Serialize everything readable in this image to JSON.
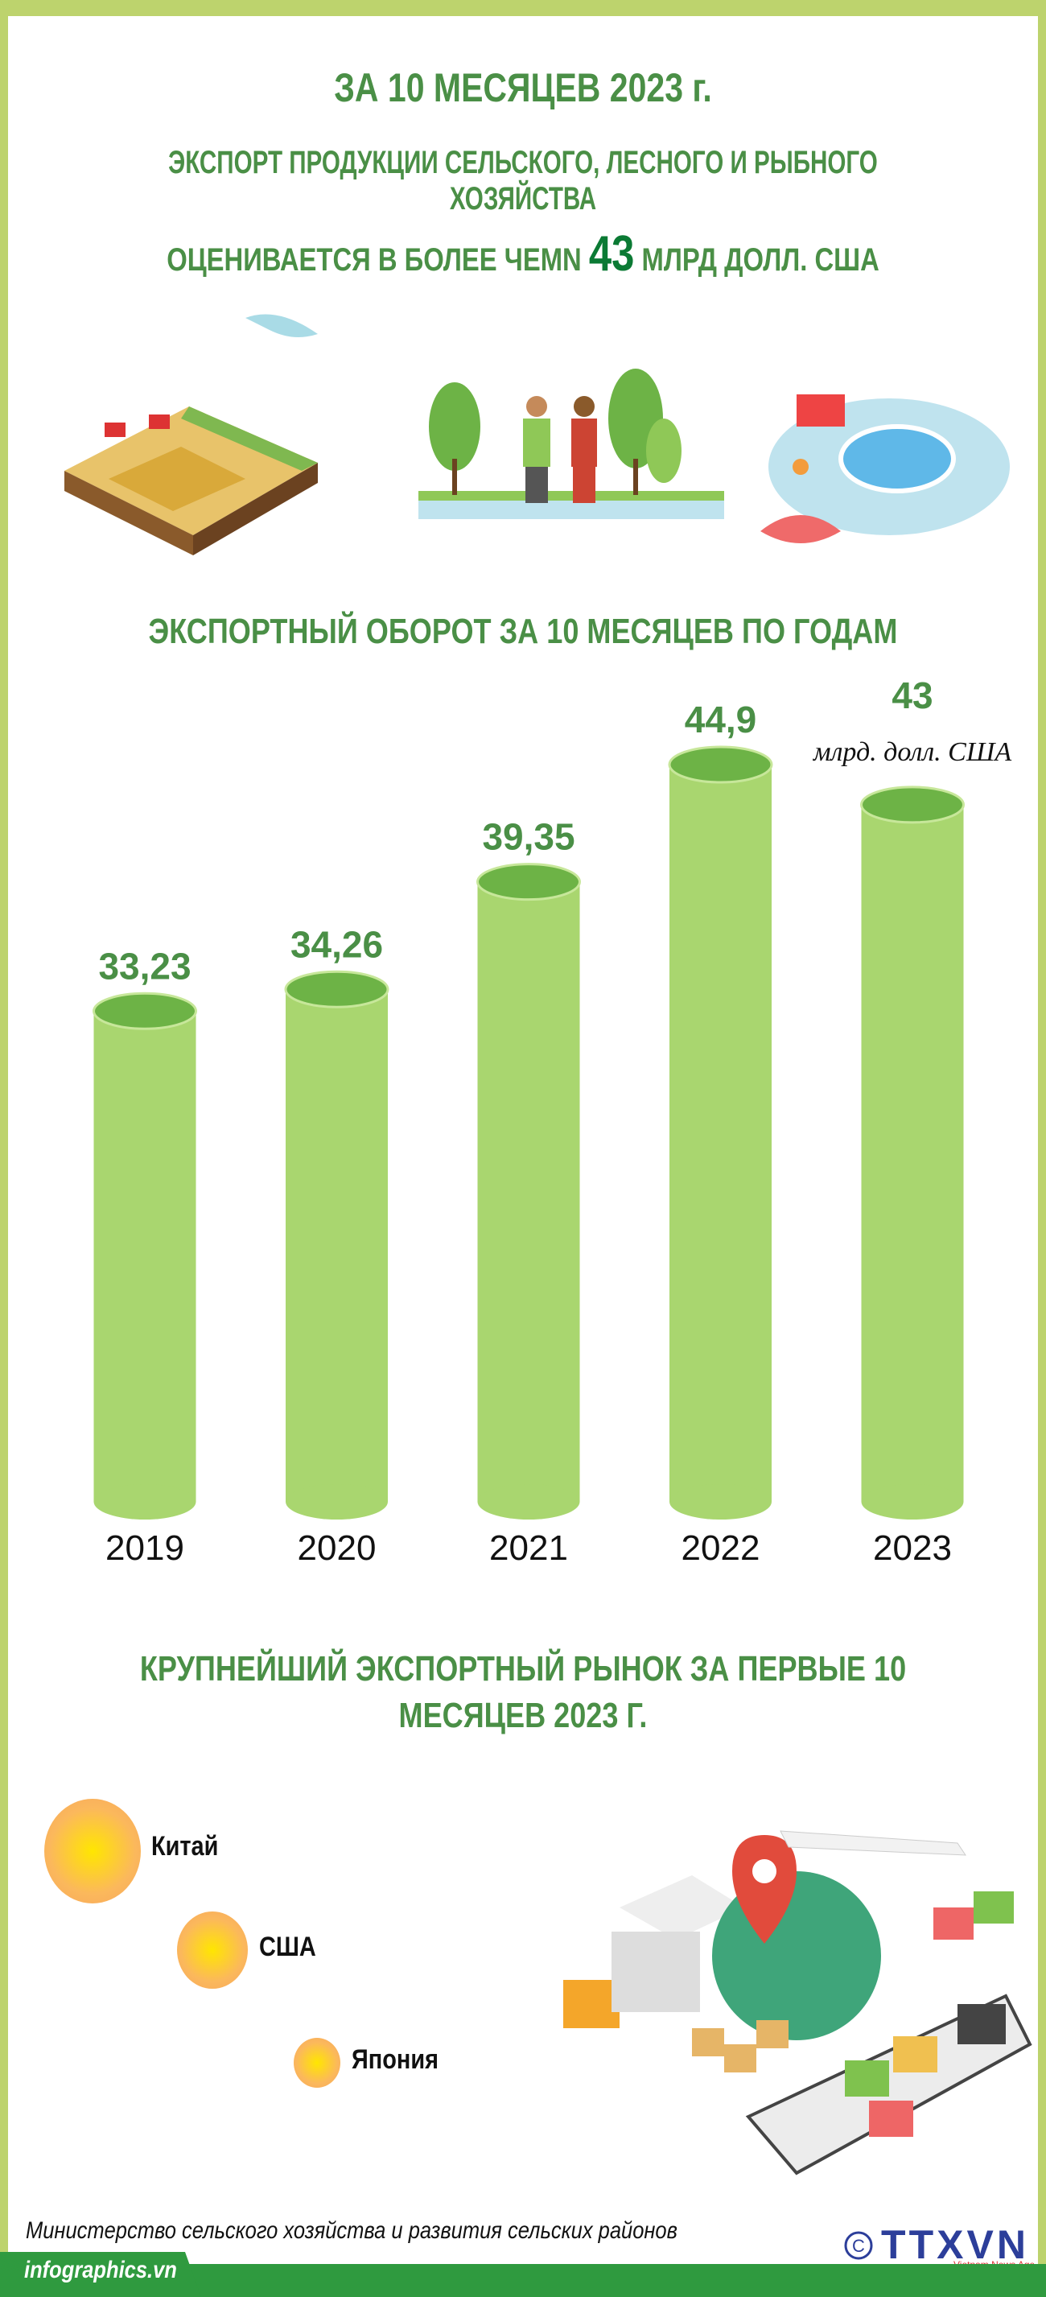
{
  "header": {
    "line1": "ЗА 10 МЕСЯЦЕВ 2023 г.",
    "line2": "ЭКСПОРТ ПРОДУКЦИИ СЕЛЬСКОГО, ЛЕСНОГО И РЫБНОГО ХОЗЯЙСТВА",
    "line3_pre": "ОЦЕНИВАЕТСЯ В БОЛЕЕ ЧЕМN ",
    "line3_num": "43",
    "line3_post": " МЛРД ДОЛЛ. США"
  },
  "chart_data": {
    "type": "bar",
    "title": "ЭКСПОРТНЫЙ ОБОРОТ ЗА 10 МЕСЯЦЕВ ПО ГОДАМ",
    "categories": [
      "2019",
      "2020",
      "2021",
      "2022",
      "2023"
    ],
    "values": [
      33.23,
      34.26,
      39.35,
      44.9,
      43
    ],
    "value_labels": [
      "33,23",
      "34,26",
      "39,35",
      "44,9",
      "43"
    ],
    "unit": "млрд. долл. США",
    "ylim": [
      0,
      46
    ],
    "colors": {
      "bar": "#a9d66f",
      "top": "#6db346",
      "label": "#4a8f46"
    }
  },
  "markets": {
    "title": "КРУПНЕЙШИЙ ЭКСПОРТНЫЙ РЫНОК ЗА ПЕРВЫЕ 10 МЕСЯЦЕВ 2023 Г.",
    "items": [
      {
        "label": "Китай"
      },
      {
        "label": "США"
      },
      {
        "label": "Япония"
      }
    ]
  },
  "footer": {
    "source": "Министерство сельского хозяйства и развития сельских районов",
    "site": "infographics.vn",
    "logo": "TTXVN",
    "logo_sub": "Vietnam News Agency"
  }
}
